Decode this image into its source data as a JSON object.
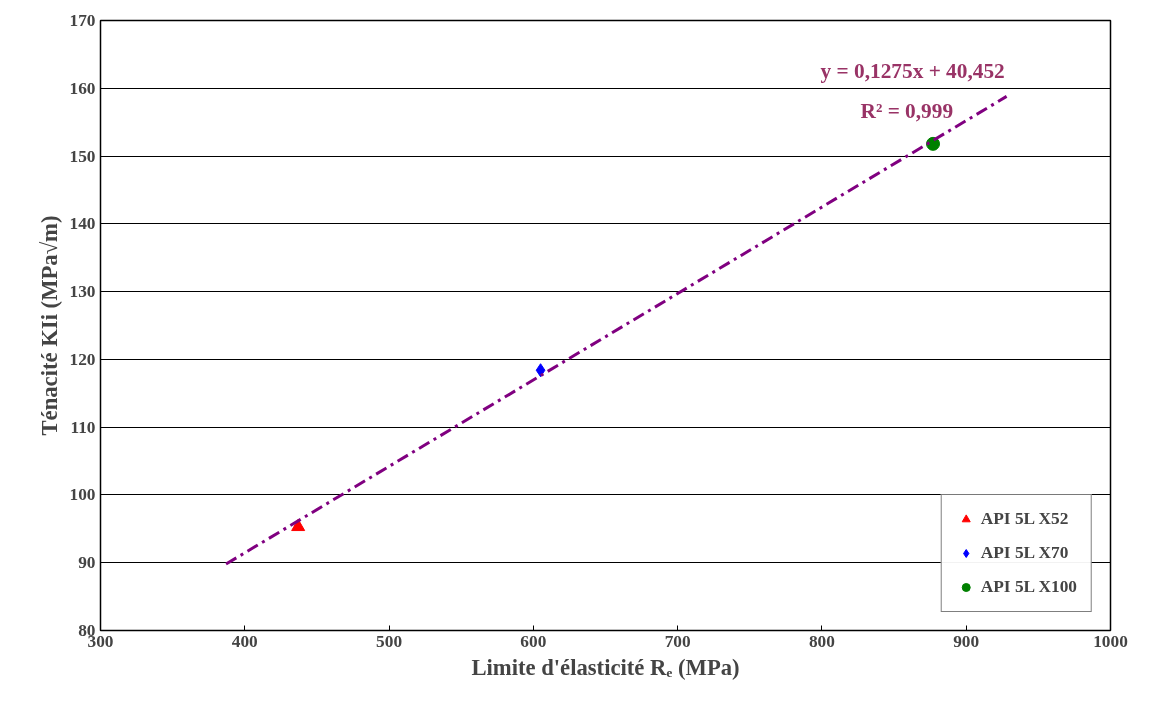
{
  "chart_data": {
    "type": "scatter",
    "xlabel": "Limite d'élasticité Rₑ (MPa)",
    "ylabel": "Ténacité KIi (MPa√m)",
    "xlim": [
      300,
      1000
    ],
    "xticks": [
      300,
      400,
      500,
      600,
      700,
      800,
      900,
      1000
    ],
    "ylim": [
      80,
      170
    ],
    "yticks": [
      80,
      90,
      100,
      110,
      120,
      130,
      140,
      150,
      160,
      170
    ],
    "grid": "y",
    "legend": "bottom right",
    "annotations": [
      "y = 0,1275x + 40,452",
      "R² = 0,999"
    ],
    "series": [
      {
        "name": "API 5L X52",
        "color": "#ff0000",
        "marker": "triangle",
        "x": [
          437
        ],
        "values": [
          95.3
        ]
      },
      {
        "name": "API 5L X70",
        "color": "#0000ff",
        "marker": "diamond",
        "x": [
          605
        ],
        "values": [
          118.4
        ]
      },
      {
        "name": "API 5L X100",
        "color": "#008000",
        "marker": "circle",
        "x": [
          877
        ],
        "values": [
          151.8
        ]
      },
      {
        "type": "line",
        "color": "#800080",
        "line_style": "dashed",
        "x": [
          387,
          928
        ],
        "values": [
          89.8,
          158.8
        ]
      }
    ]
  }
}
